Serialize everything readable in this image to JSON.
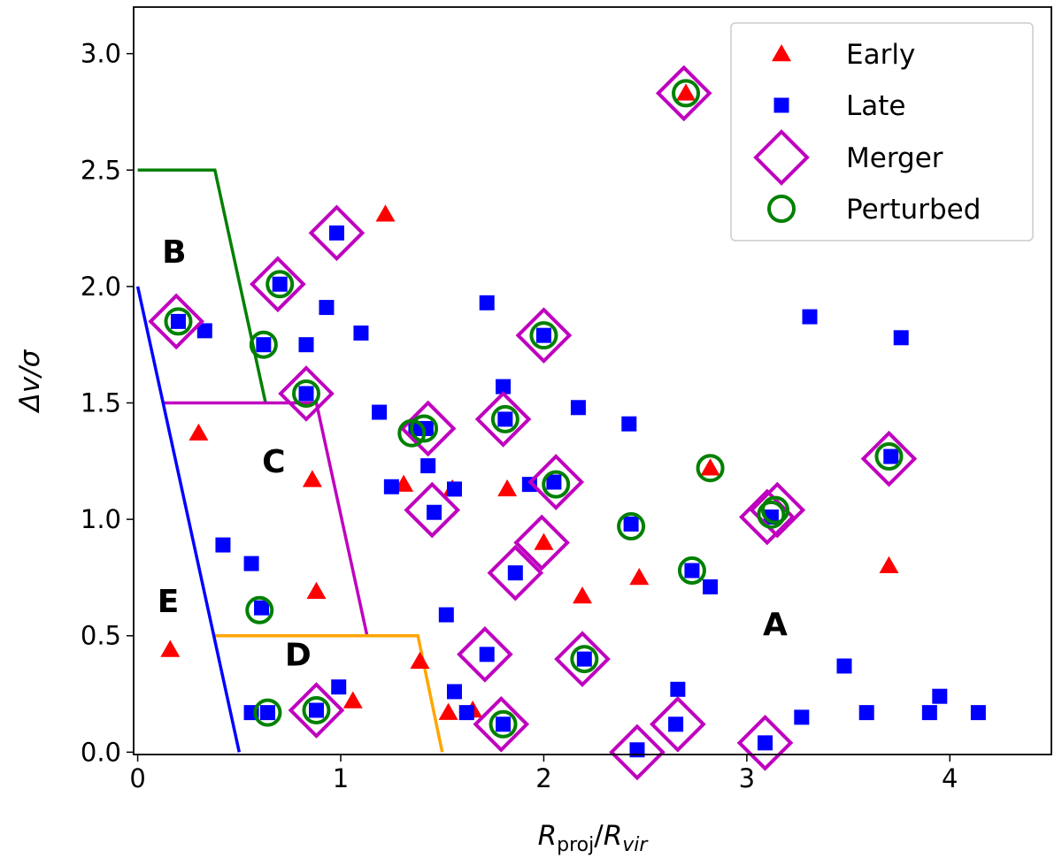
{
  "chart_data": {
    "type": "scatter",
    "xlabel_main": "R",
    "xlabel_num_sub": "proj",
    "xlabel_sep": "/",
    "xlabel_den_main": "R",
    "xlabel_den_sub": "vir",
    "ylabel": "Δv/σ",
    "xlim": [
      -0.02,
      4.5
    ],
    "ylim": [
      -0.01,
      3.2
    ],
    "x_ticks": [
      0,
      1,
      2,
      3,
      4
    ],
    "x_tick_labels": [
      "0",
      "1",
      "2",
      "3",
      "4"
    ],
    "y_ticks": [
      0.0,
      0.5,
      1.0,
      1.5,
      2.0,
      2.5,
      3.0
    ],
    "y_tick_labels": [
      "0.0",
      "0.5",
      "1.0",
      "1.5",
      "2.0",
      "2.5",
      "3.0"
    ],
    "legend": {
      "position": "upper right",
      "entries": [
        "Early",
        "Late",
        "Merger",
        "Perturbed"
      ]
    },
    "colors": {
      "early": "#ff0000",
      "late": "#0000ff",
      "merger": "#bf00bf",
      "perturbed": "#008000",
      "region_B_line": "#008000",
      "region_C_line": "#bf00bf",
      "region_D_line": "#ffa500",
      "region_E_line": "#0000ff"
    },
    "region_labels": [
      {
        "name": "A",
        "x": 3.14,
        "y": 0.54
      },
      {
        "name": "B",
        "x": 0.18,
        "y": 2.14
      },
      {
        "name": "C",
        "x": 0.67,
        "y": 1.24
      },
      {
        "name": "D",
        "x": 0.79,
        "y": 0.41
      },
      {
        "name": "E",
        "x": 0.15,
        "y": 0.64
      }
    ],
    "region_boundaries": [
      {
        "name": "B",
        "color_key": "region_B_line",
        "points": [
          [
            0,
            2.5
          ],
          [
            0.38,
            2.5
          ],
          [
            0.63,
            1.5
          ]
        ]
      },
      {
        "name": "C",
        "color_key": "region_C_line",
        "points": [
          [
            0.13,
            1.5
          ],
          [
            0.88,
            1.5
          ],
          [
            1.13,
            0.5
          ]
        ]
      },
      {
        "name": "D",
        "color_key": "region_D_line",
        "points": [
          [
            0.38,
            0.5
          ],
          [
            1.38,
            0.5
          ],
          [
            1.5,
            0.0
          ]
        ]
      },
      {
        "name": "E",
        "color_key": "region_E_line",
        "points": [
          [
            0,
            2.0
          ],
          [
            0.5,
            0.0
          ]
        ]
      }
    ],
    "series": [
      {
        "name": "Early",
        "marker": "triangle",
        "points": [
          [
            2.7,
            2.83
          ],
          [
            1.22,
            2.31
          ],
          [
            0.3,
            1.37
          ],
          [
            0.86,
            1.17
          ],
          [
            1.31,
            1.15
          ],
          [
            1.55,
            1.13
          ],
          [
            1.82,
            1.13
          ],
          [
            2.82,
            1.22
          ],
          [
            2.0,
            0.9
          ],
          [
            2.47,
            0.75
          ],
          [
            3.7,
            0.8
          ],
          [
            0.88,
            0.69
          ],
          [
            2.19,
            0.67
          ],
          [
            0.16,
            0.44
          ],
          [
            1.39,
            0.39
          ],
          [
            1.06,
            0.22
          ],
          [
            1.53,
            0.17
          ],
          [
            1.65,
            0.18
          ]
        ]
      },
      {
        "name": "Late",
        "marker": "square",
        "points": [
          [
            0.98,
            2.23
          ],
          [
            0.7,
            2.01
          ],
          [
            0.2,
            1.85
          ],
          [
            0.33,
            1.81
          ],
          [
            0.93,
            1.91
          ],
          [
            1.1,
            1.8
          ],
          [
            0.62,
            1.75
          ],
          [
            0.83,
            1.75
          ],
          [
            0.83,
            1.54
          ],
          [
            1.72,
            1.93
          ],
          [
            2.0,
            1.79
          ],
          [
            1.8,
            1.57
          ],
          [
            1.19,
            1.46
          ],
          [
            1.81,
            1.43
          ],
          [
            2.17,
            1.48
          ],
          [
            2.42,
            1.41
          ],
          [
            1.37,
            1.39
          ],
          [
            1.42,
            1.39
          ],
          [
            1.43,
            1.23
          ],
          [
            1.25,
            1.14
          ],
          [
            1.56,
            1.13
          ],
          [
            1.93,
            1.15
          ],
          [
            2.05,
            1.16
          ],
          [
            1.46,
            1.03
          ],
          [
            2.43,
            0.98
          ],
          [
            3.12,
            1.01
          ],
          [
            3.71,
            1.27
          ],
          [
            3.31,
            1.87
          ],
          [
            3.76,
            1.78
          ],
          [
            0.42,
            0.89
          ],
          [
            0.56,
            0.81
          ],
          [
            1.86,
            0.77
          ],
          [
            2.73,
            0.78
          ],
          [
            2.82,
            0.71
          ],
          [
            0.61,
            0.62
          ],
          [
            1.52,
            0.59
          ],
          [
            2.2,
            0.4
          ],
          [
            1.72,
            0.42
          ],
          [
            3.48,
            0.37
          ],
          [
            1.56,
            0.26
          ],
          [
            0.99,
            0.28
          ],
          [
            1.62,
            0.17
          ],
          [
            0.56,
            0.17
          ],
          [
            0.64,
            0.17
          ],
          [
            0.88,
            0.18
          ],
          [
            1.8,
            0.12
          ],
          [
            2.66,
            0.27
          ],
          [
            2.65,
            0.12
          ],
          [
            3.27,
            0.15
          ],
          [
            3.59,
            0.17
          ],
          [
            3.9,
            0.17
          ],
          [
            3.95,
            0.24
          ],
          [
            4.14,
            0.17
          ],
          [
            2.46,
            0.01
          ],
          [
            3.09,
            0.04
          ]
        ]
      },
      {
        "name": "Merger",
        "marker": "diamond",
        "points": [
          [
            2.69,
            2.83
          ],
          [
            0.98,
            2.23
          ],
          [
            0.69,
            2.01
          ],
          [
            0.19,
            1.85
          ],
          [
            2.0,
            1.79
          ],
          [
            0.83,
            1.54
          ],
          [
            1.43,
            1.39
          ],
          [
            1.8,
            1.43
          ],
          [
            2.06,
            1.16
          ],
          [
            1.45,
            1.04
          ],
          [
            1.99,
            0.9
          ],
          [
            1.86,
            0.77
          ],
          [
            3.1,
            1.01
          ],
          [
            3.15,
            1.04
          ],
          [
            3.7,
            1.26
          ],
          [
            1.71,
            0.42
          ],
          [
            2.19,
            0.4
          ],
          [
            0.88,
            0.18
          ],
          [
            1.79,
            0.12
          ],
          [
            2.46,
            0.0
          ],
          [
            2.66,
            0.12
          ],
          [
            3.09,
            0.04
          ]
        ]
      },
      {
        "name": "Perturbed",
        "marker": "circle",
        "points": [
          [
            2.7,
            2.83
          ],
          [
            0.7,
            2.01
          ],
          [
            0.2,
            1.85
          ],
          [
            0.62,
            1.75
          ],
          [
            2.0,
            1.79
          ],
          [
            0.83,
            1.54
          ],
          [
            1.35,
            1.37
          ],
          [
            1.41,
            1.39
          ],
          [
            1.81,
            1.43
          ],
          [
            2.06,
            1.15
          ],
          [
            2.82,
            1.22
          ],
          [
            2.43,
            0.97
          ],
          [
            3.12,
            1.02
          ],
          [
            3.14,
            1.04
          ],
          [
            3.7,
            1.27
          ],
          [
            2.73,
            0.78
          ],
          [
            0.6,
            0.61
          ],
          [
            2.2,
            0.4
          ],
          [
            0.64,
            0.17
          ],
          [
            0.88,
            0.18
          ],
          [
            1.8,
            0.12
          ]
        ]
      }
    ]
  }
}
